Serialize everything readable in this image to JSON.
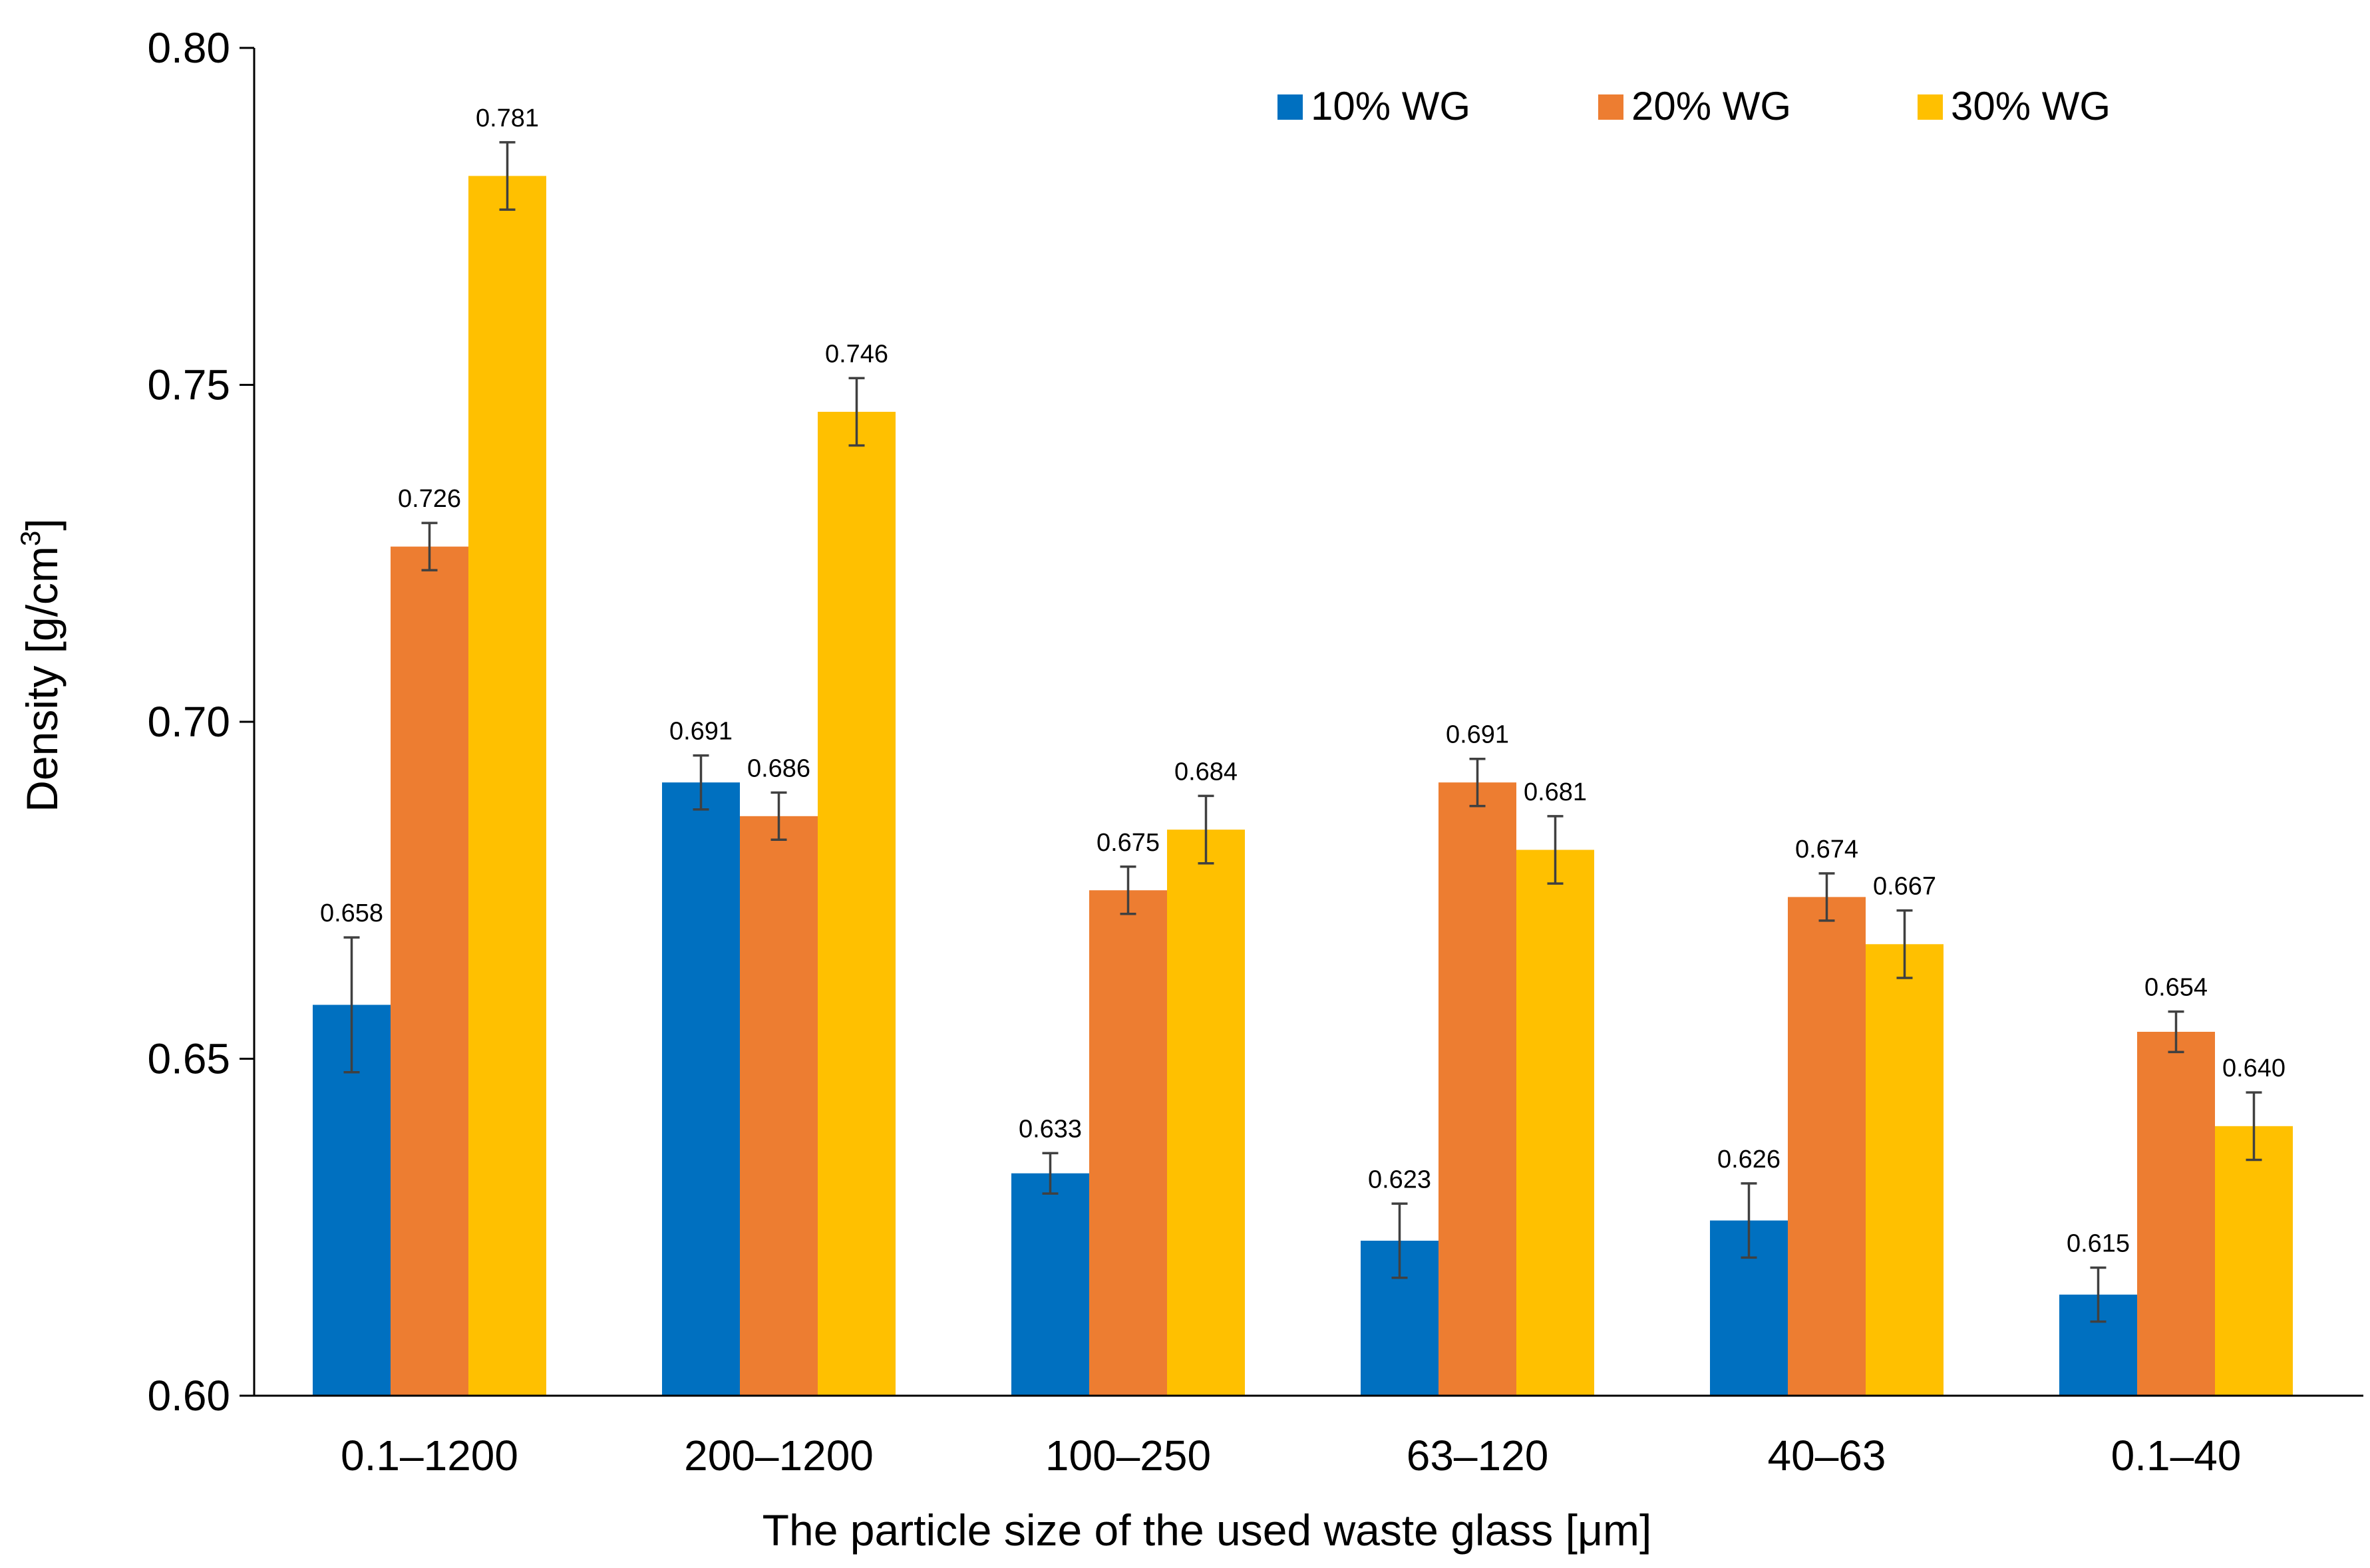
{
  "chart_data": {
    "type": "bar",
    "title": "",
    "xlabel": "The particle size of the used waste glass [μm]",
    "ylabel": "Density [g/cm",
    "ylabel_superscript": "3",
    "ylabel_suffix": "]",
    "ylim": [
      0.6,
      0.8
    ],
    "yticks": [
      "0.60",
      "0.65",
      "0.70",
      "0.75",
      "0.80"
    ],
    "categories": [
      "0.1‒1200",
      "200‒1200",
      "100‒250",
      "63‒120",
      "40‒63",
      "0.1‒40"
    ],
    "series": [
      {
        "name": "10% WG",
        "color": "#0070C0",
        "values": [
          0.658,
          0.691,
          0.633,
          0.623,
          0.626,
          0.615
        ],
        "errors": [
          0.01,
          0.004,
          0.003,
          0.0055,
          0.0055,
          0.004
        ],
        "labels": [
          "0.658",
          "0.691",
          "0.633",
          "0.623",
          "0.626",
          "0.615"
        ]
      },
      {
        "name": "20% WG",
        "color": "#ED7D31",
        "values": [
          0.726,
          0.686,
          0.675,
          0.691,
          0.674,
          0.654
        ],
        "errors": [
          0.0035,
          0.0035,
          0.0035,
          0.0035,
          0.0035,
          0.003
        ],
        "labels": [
          "0.726",
          "0.686",
          "0.675",
          "0.691",
          "0.674",
          "0.654"
        ]
      },
      {
        "name": "30% WG",
        "color": "#FFC000",
        "values": [
          0.781,
          0.746,
          0.684,
          0.681,
          0.667,
          0.64
        ],
        "errors": [
          0.005,
          0.005,
          0.005,
          0.005,
          0.005,
          0.005
        ],
        "labels": [
          "0.781",
          "0.746",
          "0.684",
          "0.681",
          "0.667",
          "0.640"
        ]
      }
    ],
    "grid": false,
    "legend_position": "top-right"
  }
}
